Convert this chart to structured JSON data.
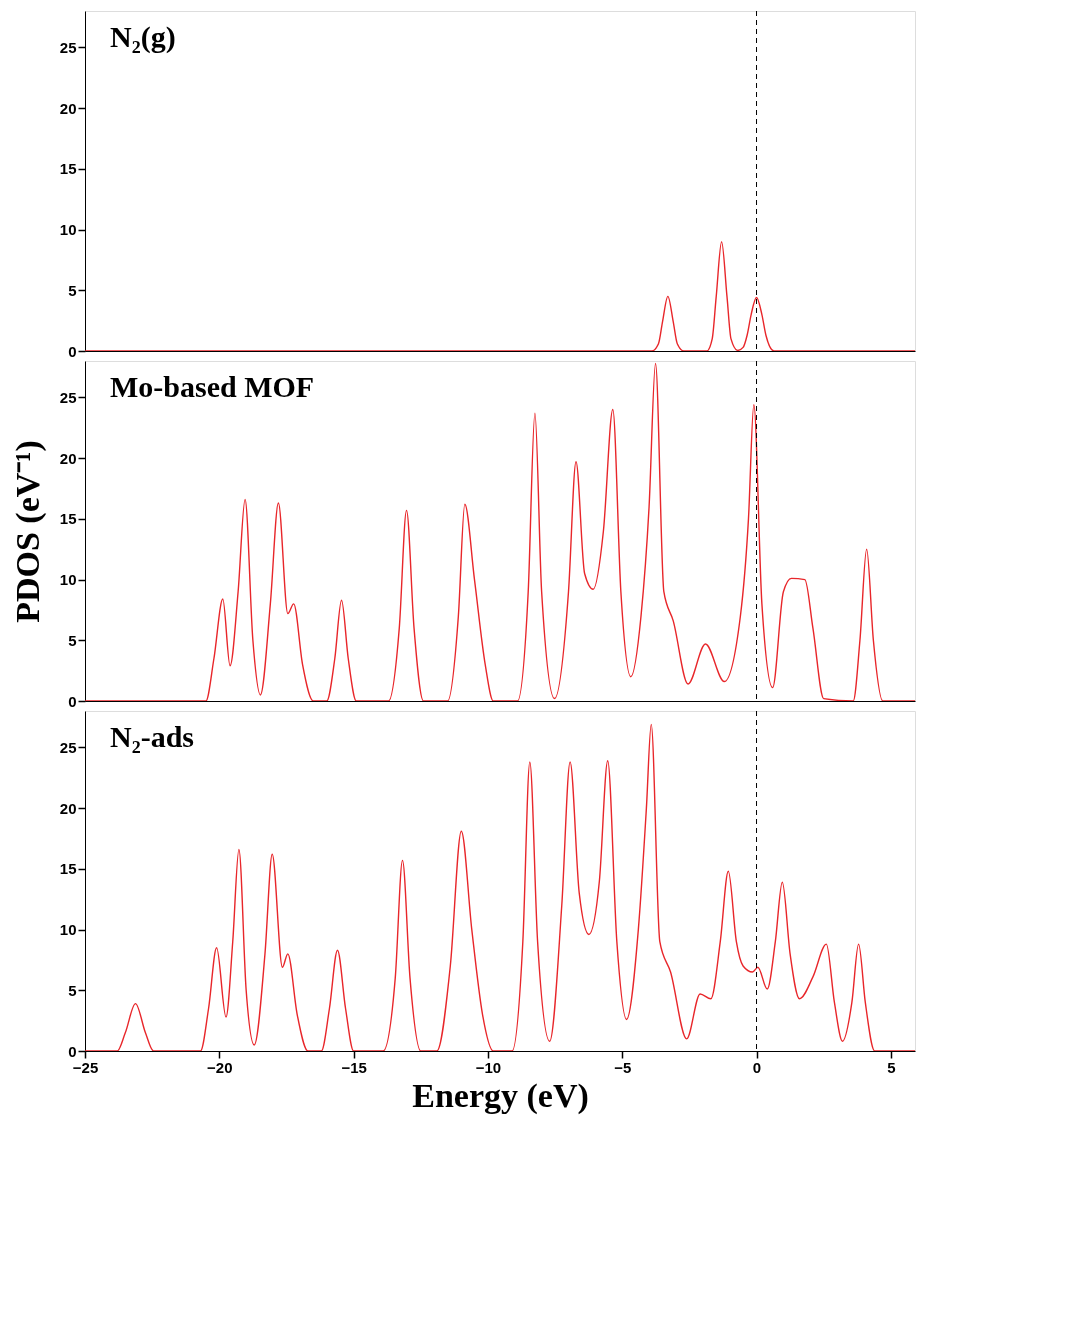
{
  "chart_data": [
    {
      "type": "line",
      "annotations": [
        "N₂(g)"
      ],
      "xlim": [
        -25,
        5.9
      ],
      "ylim": [
        0,
        28
      ],
      "yticks": [
        0,
        5,
        10,
        15,
        20,
        25
      ],
      "tick_labels": "y",
      "grid": false,
      "ref_lines": [
        {
          "axis": "x",
          "value": 0,
          "color": "#000000",
          "line_style": "dashed"
        }
      ],
      "series": [
        {
          "color": "#e8262a",
          "x": [
            -25,
            -3.9,
            -3.65,
            -3.5,
            -3.3,
            -3.1,
            -2.95,
            -2.7,
            -1.85,
            -1.65,
            -1.5,
            -1.3,
            -1.1,
            -0.95,
            -0.7,
            -0.5,
            -0.35,
            -0.2,
            0.0,
            0.2,
            0.35,
            0.65,
            5.9
          ],
          "values": [
            0,
            0,
            0.6,
            2.4,
            4.5,
            2.4,
            0.6,
            0,
            0,
            1.0,
            4.5,
            9.0,
            4.5,
            1.0,
            0.05,
            0.3,
            1.3,
            3.0,
            4.4,
            3.0,
            1.3,
            0,
            0
          ]
        }
      ]
    },
    {
      "type": "line",
      "annotations": [
        "Mo-based MOF"
      ],
      "ylabel": "PDOS (eV⁻¹)",
      "xlim": [
        -25,
        5.9
      ],
      "ylim": [
        0,
        28
      ],
      "yticks": [
        0,
        5,
        10,
        15,
        20,
        25
      ],
      "tick_labels": "y",
      "grid": false,
      "ref_lines": [
        {
          "axis": "x",
          "value": 0,
          "color": "#000000",
          "line_style": "dashed"
        }
      ],
      "series": [
        {
          "color": "#e8262a",
          "x": [
            -25,
            -20.5,
            -20.2,
            -19.87,
            -19.6,
            -19.3,
            -19.04,
            -18.75,
            -18.47,
            -18.1,
            -17.8,
            -17.45,
            -17.23,
            -16.9,
            -16.5,
            -16.0,
            -15.7,
            -15.45,
            -15.2,
            -14.9,
            -13.7,
            -13.3,
            -13.03,
            -12.75,
            -12.4,
            -11.5,
            -11.1,
            -10.86,
            -10.5,
            -10.1,
            -9.8,
            -8.9,
            -8.5,
            -8.25,
            -8.0,
            -7.52,
            -7.0,
            -6.72,
            -6.4,
            -6.08,
            -5.7,
            -5.35,
            -5.05,
            -4.68,
            -4.3,
            -4.0,
            -3.76,
            -3.45,
            -3.1,
            -2.55,
            -1.9,
            -1.2,
            -0.6,
            -0.3,
            -0.1,
            0.2,
            0.6,
            1.0,
            1.3,
            1.8,
            2.1,
            2.5,
            3.6,
            3.85,
            4.1,
            4.35,
            4.7,
            5.9
          ],
          "values": [
            0,
            0,
            3.5,
            8.4,
            2.9,
            9.0,
            16.6,
            5.0,
            0.5,
            8.0,
            16.3,
            7.2,
            8.0,
            3.0,
            0,
            0,
            3.5,
            8.3,
            3.5,
            0,
            0,
            6.0,
            15.7,
            6.0,
            0,
            0,
            7.0,
            16.2,
            10.0,
            3.0,
            0,
            0,
            9.0,
            23.7,
            9.0,
            0.2,
            9.0,
            19.7,
            10.5,
            9.2,
            14.0,
            24.0,
            9.0,
            2.0,
            7.0,
            16.0,
            27.8,
            9.0,
            6.6,
            1.4,
            4.7,
            1.6,
            7.0,
            15.0,
            24.4,
            8.0,
            1.1,
            9.0,
            10.1,
            10.0,
            6.0,
            0.2,
            0,
            5.0,
            12.5,
            5.0,
            0,
            0
          ]
        }
      ]
    },
    {
      "type": "line",
      "annotations": [
        "N₂-ads"
      ],
      "xlabel": "Energy (eV)",
      "xlim": [
        -25,
        5.9
      ],
      "xticks": [
        -25,
        -20,
        -15,
        -10,
        -5,
        0,
        5
      ],
      "ylim": [
        0,
        28
      ],
      "yticks": [
        0,
        5,
        10,
        15,
        20,
        25
      ],
      "grid": false,
      "ref_lines": [
        {
          "axis": "x",
          "value": 0,
          "color": "#000000",
          "line_style": "dashed"
        }
      ],
      "series": [
        {
          "color": "#e8262a",
          "x": [
            -25,
            -23.8,
            -23.5,
            -23.12,
            -22.75,
            -22.45,
            -20.7,
            -20.4,
            -20.1,
            -19.75,
            -19.5,
            -19.27,
            -19.0,
            -18.7,
            -18.3,
            -18.03,
            -17.65,
            -17.45,
            -17.1,
            -16.7,
            -16.2,
            -15.9,
            -15.6,
            -15.3,
            -15.0,
            -13.9,
            -13.45,
            -13.18,
            -12.9,
            -12.5,
            -11.9,
            -11.4,
            -10.99,
            -10.6,
            -10.2,
            -9.8,
            -9.1,
            -8.7,
            -8.44,
            -8.15,
            -7.7,
            -7.25,
            -6.94,
            -6.6,
            -6.24,
            -5.85,
            -5.54,
            -5.2,
            -4.84,
            -4.4,
            -4.1,
            -3.92,
            -3.6,
            -3.2,
            -2.6,
            -2.1,
            -1.7,
            -1.35,
            -1.05,
            -0.75,
            -0.5,
            -0.15,
            0.05,
            0.4,
            0.7,
            0.96,
            1.25,
            1.6,
            2.1,
            2.6,
            2.9,
            3.2,
            3.55,
            3.8,
            4.05,
            4.4,
            5.9
          ],
          "values": [
            0,
            0,
            1.5,
            3.9,
            1.5,
            0,
            0,
            3.5,
            8.5,
            2.8,
            9.0,
            16.6,
            5.0,
            0.5,
            8.0,
            16.2,
            6.9,
            8.0,
            3.0,
            0,
            0,
            3.5,
            8.3,
            3.5,
            0,
            0,
            6.0,
            15.7,
            6.0,
            0,
            0,
            7.0,
            18.1,
            10.0,
            3.0,
            0,
            0,
            9.0,
            23.8,
            9.0,
            0.8,
            12.0,
            23.8,
            13.0,
            9.6,
            14.0,
            23.9,
            9.0,
            2.6,
            10.0,
            20.0,
            26.9,
            9.0,
            6.5,
            1.0,
            4.7,
            4.3,
            9.0,
            14.8,
            9.0,
            7.0,
            6.5,
            6.9,
            5.1,
            9.0,
            13.9,
            8.0,
            4.3,
            6.1,
            8.8,
            4.0,
            0.8,
            4.0,
            8.8,
            4.0,
            0,
            0
          ]
        }
      ]
    }
  ]
}
